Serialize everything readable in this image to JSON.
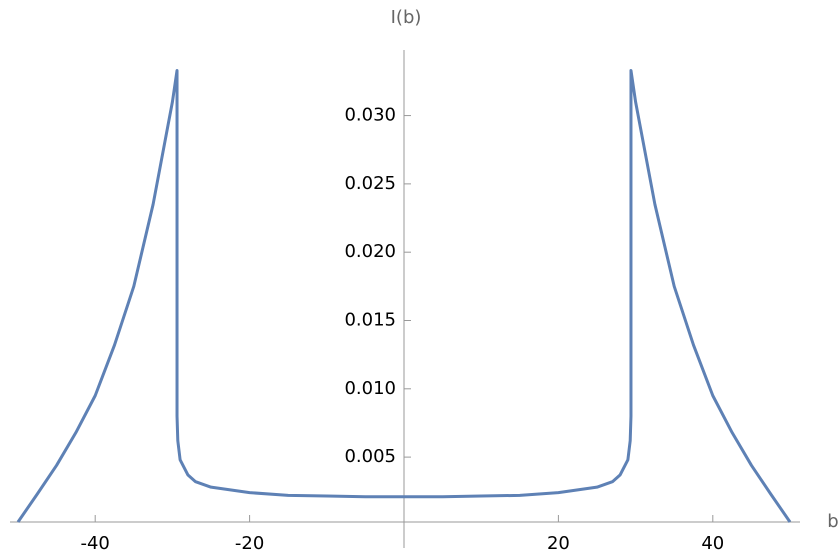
{
  "chart_data": {
    "type": "line",
    "x_label": "b",
    "y_label": "I(b)",
    "xlim": [
      -50,
      50
    ],
    "ylim": [
      0.00025,
      0.0348
    ],
    "xticks": [
      -40,
      -20,
      20,
      40
    ],
    "yticks": [
      0.005,
      {
        "value": 0.01,
        "label": "0.010"
      },
      0.015,
      {
        "value": 0.02,
        "label": "0.020"
      },
      0.025,
      {
        "value": 0.03,
        "label": "0.030"
      }
    ],
    "series": [
      {
        "color": "#5e81b5",
        "x": [
          -50,
          -47.5,
          -45,
          -42.5,
          -40,
          -37.5,
          -35,
          -32.5,
          -30,
          -29.4,
          -29.4,
          -29.3,
          -29,
          -28,
          -27,
          -25,
          -20,
          -15,
          -10,
          -5,
          0,
          5,
          10,
          15,
          20,
          25,
          27,
          28,
          29,
          29.3,
          29.4,
          29.4,
          30,
          32.5,
          35,
          37.5,
          40,
          42.5,
          45,
          47.5,
          50
        ],
        "values": [
          0.00025,
          0.0023,
          0.0044,
          0.0068,
          0.0095,
          0.0132,
          0.0175,
          0.0235,
          0.031,
          0.0333,
          0.008,
          0.0062,
          0.0048,
          0.0037,
          0.0032,
          0.0028,
          0.0024,
          0.0022,
          0.00215,
          0.0021,
          0.0021,
          0.0021,
          0.00215,
          0.0022,
          0.0024,
          0.0028,
          0.0032,
          0.0037,
          0.0048,
          0.0062,
          0.008,
          0.0333,
          0.031,
          0.0235,
          0.0175,
          0.0132,
          0.0095,
          0.0068,
          0.0044,
          0.0023,
          0.00025
        ]
      }
    ]
  }
}
